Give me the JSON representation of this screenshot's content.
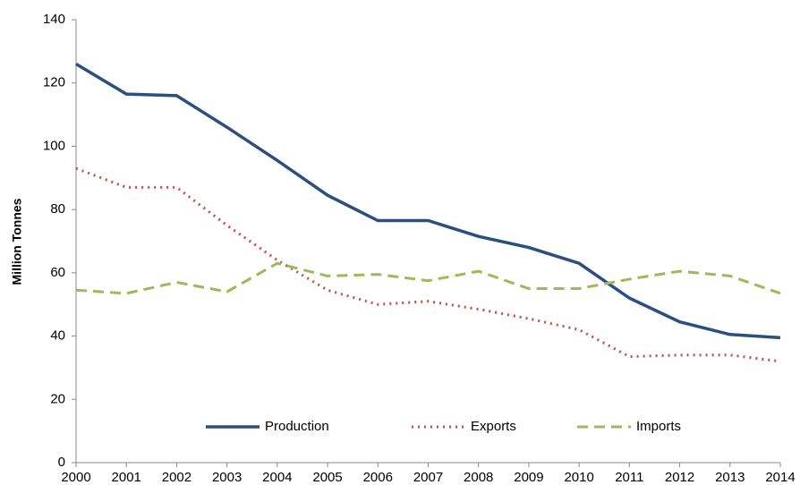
{
  "chart_data": {
    "type": "line",
    "y_label": "Million Tonnes",
    "x": [
      2000,
      2001,
      2002,
      2003,
      2004,
      2005,
      2006,
      2007,
      2008,
      2009,
      2010,
      2011,
      2012,
      2013,
      2014
    ],
    "xlim": [
      2000,
      2014
    ],
    "xticks": [
      2000,
      2001,
      2002,
      2003,
      2004,
      2005,
      2006,
      2007,
      2008,
      2009,
      2010,
      2011,
      2012,
      2013,
      2014
    ],
    "ylim": [
      0,
      140
    ],
    "yticks": [
      0,
      20,
      40,
      60,
      80,
      100,
      120,
      140
    ],
    "grid": false,
    "legend": "lower center",
    "series": [
      {
        "name": "Production",
        "color": "#2a4f80",
        "style": "solid",
        "values": [
          126,
          116.5,
          116,
          106,
          95.5,
          84.5,
          76.5,
          76.5,
          71.5,
          68,
          63,
          52,
          44.5,
          40.5,
          39.5
        ]
      },
      {
        "name": "Exports",
        "color": "#c0504d",
        "style": "dotted",
        "values": [
          93,
          87,
          87,
          75,
          64,
          54.5,
          50,
          51,
          48.5,
          45.5,
          42,
          33.5,
          34,
          34,
          32
        ]
      },
      {
        "name": "Imports",
        "color": "#9bbb59",
        "style": "dashed",
        "values": [
          54.5,
          53.5,
          57,
          54,
          63,
          59,
          59.5,
          57.5,
          60.5,
          55,
          55,
          58,
          60.5,
          59,
          53.5
        ]
      }
    ]
  }
}
